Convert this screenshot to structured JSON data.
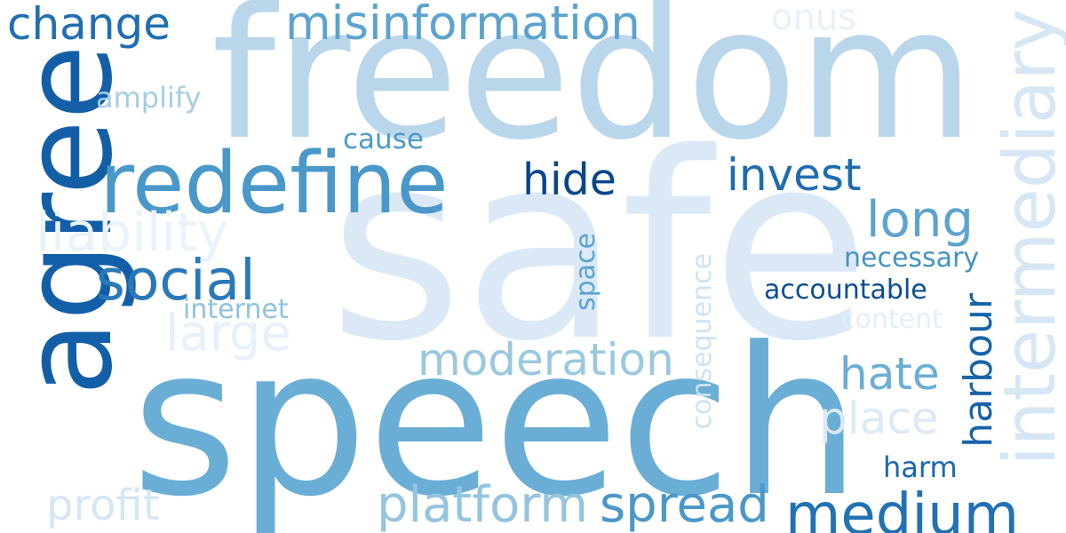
{
  "background": "#ffffff",
  "words": [
    {
      "id": "freedom",
      "text": "freedom",
      "color": "#bad6eb"
    },
    {
      "id": "safe",
      "text": "safe",
      "color": "#dbe9f6"
    },
    {
      "id": "speech",
      "text": "speech",
      "color": "#6aaed6"
    },
    {
      "id": "agree",
      "text": "agree",
      "color": "#135fa7"
    },
    {
      "id": "intermediary",
      "text": "intermediary",
      "color": "#d6e6f4"
    },
    {
      "id": "redefine",
      "text": "redefine",
      "color": "#4a98c9"
    },
    {
      "id": "misinformation",
      "text": "misinformation",
      "color": "#5ba3d0"
    },
    {
      "id": "change",
      "text": "change",
      "color": "#1f6eb3"
    },
    {
      "id": "medium",
      "text": "medium",
      "color": "#2171b5"
    },
    {
      "id": "platform",
      "text": "platform",
      "color": "#94c4df"
    },
    {
      "id": "spread",
      "text": "spread",
      "color": "#4a98c9"
    },
    {
      "id": "moderation",
      "text": "moderation",
      "color": "#9ac8e0"
    },
    {
      "id": "social",
      "text": "social",
      "color": "#2979b9"
    },
    {
      "id": "liability",
      "text": "liability",
      "color": "#eaf2fb"
    },
    {
      "id": "large",
      "text": "large",
      "color": "#e7f0fa"
    },
    {
      "id": "hide",
      "text": "hide",
      "color": "#08468b"
    },
    {
      "id": "invest",
      "text": "invest",
      "color": "#1d6cb1"
    },
    {
      "id": "long",
      "text": "long",
      "color": "#5ca4d0"
    },
    {
      "id": "harbour",
      "text": "harbour",
      "color": "#1764ab"
    },
    {
      "id": "hate",
      "text": "hate",
      "color": "#6aaed6"
    },
    {
      "id": "place",
      "text": "place",
      "color": "#dce9f6"
    },
    {
      "id": "profit",
      "text": "profit",
      "color": "#d6e6f4"
    },
    {
      "id": "onus",
      "text": "onus",
      "color": "#e8f1fa"
    },
    {
      "id": "amplify",
      "text": "amplify",
      "color": "#a5cde3"
    },
    {
      "id": "cause",
      "text": "cause",
      "color": "#4d99ca"
    },
    {
      "id": "internet",
      "text": "internet",
      "color": "#8fc2de"
    },
    {
      "id": "space",
      "text": "space",
      "color": "#5ba3d0"
    },
    {
      "id": "consequence",
      "text": "consequence",
      "color": "#d0e2f2"
    },
    {
      "id": "necessary",
      "text": "necessary",
      "color": "#4393c3"
    },
    {
      "id": "accountable",
      "text": "accountable",
      "color": "#0b4d94"
    },
    {
      "id": "content",
      "text": "content",
      "color": "#e3eef8"
    },
    {
      "id": "harm",
      "text": "harm",
      "color": "#1a68ae"
    }
  ]
}
